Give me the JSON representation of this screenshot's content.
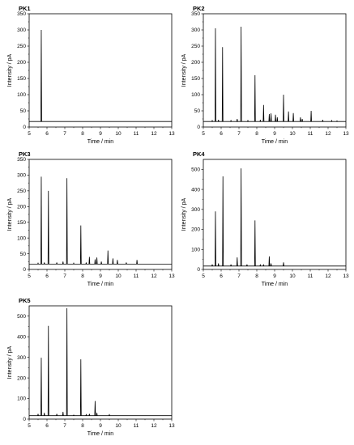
{
  "chart_data": [
    {
      "type": "line",
      "title": "PK1",
      "xlabel": "Time / min",
      "ylabel": "Intensity / pA",
      "xlim": [
        5,
        13
      ],
      "ylim": [
        0,
        350
      ],
      "xticks": [
        5,
        6,
        7,
        8,
        9,
        10,
        11,
        12,
        13
      ],
      "yticks": [
        0,
        50,
        100,
        150,
        200,
        250,
        300,
        350
      ],
      "baseline": 17,
      "peaks": [
        {
          "x": 5.68,
          "y": 300
        }
      ]
    },
    {
      "type": "line",
      "title": "PK2",
      "xlabel": "Time / min",
      "ylabel": "Intensity / pA",
      "xlim": [
        5,
        13
      ],
      "ylim": [
        0,
        350
      ],
      "xticks": [
        5,
        6,
        7,
        8,
        9,
        10,
        11,
        12,
        13
      ],
      "yticks": [
        0,
        50,
        100,
        150,
        200,
        250,
        300,
        350
      ],
      "baseline": 17,
      "peaks": [
        {
          "x": 5.5,
          "y": 20
        },
        {
          "x": 5.68,
          "y": 305
        },
        {
          "x": 5.85,
          "y": 22
        },
        {
          "x": 6.08,
          "y": 247
        },
        {
          "x": 6.55,
          "y": 20
        },
        {
          "x": 6.9,
          "y": 25
        },
        {
          "x": 7.12,
          "y": 310
        },
        {
          "x": 7.5,
          "y": 20
        },
        {
          "x": 7.9,
          "y": 160
        },
        {
          "x": 8.2,
          "y": 22
        },
        {
          "x": 8.38,
          "y": 68
        },
        {
          "x": 8.7,
          "y": 40
        },
        {
          "x": 8.8,
          "y": 42
        },
        {
          "x": 9.05,
          "y": 38
        },
        {
          "x": 9.15,
          "y": 30
        },
        {
          "x": 9.5,
          "y": 100
        },
        {
          "x": 9.78,
          "y": 48
        },
        {
          "x": 10.05,
          "y": 43
        },
        {
          "x": 10.45,
          "y": 30
        },
        {
          "x": 10.55,
          "y": 25
        },
        {
          "x": 11.05,
          "y": 50
        },
        {
          "x": 11.7,
          "y": 22
        },
        {
          "x": 12.2,
          "y": 20
        },
        {
          "x": 12.5,
          "y": 19
        }
      ]
    },
    {
      "type": "line",
      "title": "PK3",
      "xlabel": "Time / min",
      "ylabel": "Intensity / pA",
      "xlim": [
        5,
        13
      ],
      "ylim": [
        0,
        350
      ],
      "xticks": [
        5,
        6,
        7,
        8,
        9,
        10,
        11,
        12,
        13
      ],
      "yticks": [
        0,
        50,
        100,
        150,
        200,
        250,
        300,
        350
      ],
      "baseline": 17,
      "peaks": [
        {
          "x": 5.5,
          "y": 20
        },
        {
          "x": 5.68,
          "y": 295
        },
        {
          "x": 5.85,
          "y": 22
        },
        {
          "x": 6.08,
          "y": 250
        },
        {
          "x": 6.55,
          "y": 22
        },
        {
          "x": 6.9,
          "y": 25
        },
        {
          "x": 7.12,
          "y": 290
        },
        {
          "x": 7.5,
          "y": 20
        },
        {
          "x": 7.9,
          "y": 140
        },
        {
          "x": 8.2,
          "y": 22
        },
        {
          "x": 8.38,
          "y": 40
        },
        {
          "x": 8.7,
          "y": 32
        },
        {
          "x": 8.8,
          "y": 38
        },
        {
          "x": 9.05,
          "y": 25
        },
        {
          "x": 9.42,
          "y": 60
        },
        {
          "x": 9.7,
          "y": 35
        },
        {
          "x": 9.95,
          "y": 30
        },
        {
          "x": 10.45,
          "y": 22
        },
        {
          "x": 11.05,
          "y": 30
        }
      ]
    },
    {
      "type": "line",
      "title": "PK4",
      "xlabel": "Time / min",
      "ylabel": "Intensity / pA",
      "xlim": [
        5,
        13
      ],
      "ylim": [
        0,
        550
      ],
      "xticks": [
        5,
        6,
        7,
        8,
        9,
        10,
        11,
        12,
        13
      ],
      "yticks": [
        0,
        100,
        200,
        300,
        400,
        500
      ],
      "baseline": 17,
      "peaks": [
        {
          "x": 5.5,
          "y": 25
        },
        {
          "x": 5.68,
          "y": 290
        },
        {
          "x": 5.85,
          "y": 30
        },
        {
          "x": 6.1,
          "y": 465
        },
        {
          "x": 6.55,
          "y": 25
        },
        {
          "x": 6.9,
          "y": 60
        },
        {
          "x": 7.12,
          "y": 505
        },
        {
          "x": 7.45,
          "y": 25
        },
        {
          "x": 7.9,
          "y": 245
        },
        {
          "x": 8.2,
          "y": 25
        },
        {
          "x": 8.38,
          "y": 25
        },
        {
          "x": 8.7,
          "y": 65
        },
        {
          "x": 8.8,
          "y": 30
        },
        {
          "x": 9.5,
          "y": 35
        }
      ]
    },
    {
      "type": "line",
      "title": "PK5",
      "xlabel": "Time / min",
      "ylabel": "Intensity / pA",
      "xlim": [
        5,
        13
      ],
      "ylim": [
        0,
        550
      ],
      "xticks": [
        5,
        6,
        7,
        8,
        9,
        10,
        11,
        12,
        13
      ],
      "yticks": [
        0,
        100,
        200,
        300,
        400,
        500
      ],
      "baseline": 17,
      "peaks": [
        {
          "x": 5.5,
          "y": 25
        },
        {
          "x": 5.68,
          "y": 298
        },
        {
          "x": 5.85,
          "y": 30
        },
        {
          "x": 6.08,
          "y": 453
        },
        {
          "x": 6.55,
          "y": 25
        },
        {
          "x": 6.9,
          "y": 35
        },
        {
          "x": 7.12,
          "y": 538
        },
        {
          "x": 7.5,
          "y": 20
        },
        {
          "x": 7.9,
          "y": 290
        },
        {
          "x": 8.2,
          "y": 22
        },
        {
          "x": 8.38,
          "y": 25
        },
        {
          "x": 8.7,
          "y": 88
        },
        {
          "x": 8.8,
          "y": 30
        },
        {
          "x": 9.5,
          "y": 22
        }
      ]
    }
  ]
}
